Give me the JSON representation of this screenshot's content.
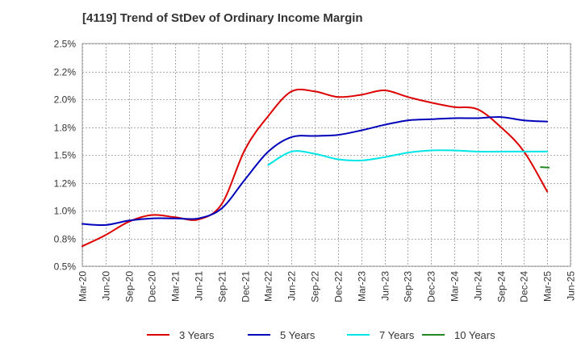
{
  "chart_data": {
    "type": "line",
    "title": "[4119]  Trend of StDev of Ordinary Income Margin",
    "xlabel": "",
    "ylabel": "",
    "ylim": [
      0.5,
      2.5
    ],
    "y_ticks": [
      "0.5%",
      "0.8%",
      "1.0%",
      "1.2%",
      "1.5%",
      "1.8%",
      "2.0%",
      "2.2%",
      "2.5%"
    ],
    "y_tick_values": [
      0.5,
      0.75,
      1.0,
      1.25,
      1.5,
      1.75,
      2.0,
      2.25,
      2.5
    ],
    "categories": [
      "Mar-20",
      "Jun-20",
      "Sep-20",
      "Dec-20",
      "Mar-21",
      "Jun-21",
      "Sep-21",
      "Dec-21",
      "Mar-22",
      "Jun-22",
      "Sep-22",
      "Dec-22",
      "Mar-23",
      "Jun-23",
      "Sep-23",
      "Dec-23",
      "Mar-24",
      "Jun-24",
      "Sep-24",
      "Dec-24",
      "Mar-25",
      "Jun-25"
    ],
    "grid": true,
    "legend_position": "bottom",
    "series": [
      {
        "name": "3 Years",
        "color": "#dd0000",
        "values": [
          0.68,
          0.78,
          0.9,
          0.96,
          0.94,
          0.92,
          1.06,
          1.55,
          1.85,
          2.07,
          2.07,
          2.02,
          2.04,
          2.08,
          2.02,
          1.97,
          1.93,
          1.91,
          1.75,
          1.53,
          1.17,
          null
        ]
      },
      {
        "name": "5 Years",
        "color": "#0000bb",
        "values": [
          0.88,
          0.87,
          0.91,
          0.93,
          0.93,
          0.93,
          1.02,
          1.28,
          1.53,
          1.66,
          1.67,
          1.68,
          1.72,
          1.77,
          1.81,
          1.82,
          1.83,
          1.83,
          1.84,
          1.81,
          1.8,
          null
        ]
      },
      {
        "name": "7 Years",
        "color": "#00e5e5",
        "values": [
          null,
          null,
          null,
          null,
          null,
          null,
          null,
          null,
          1.41,
          1.53,
          1.51,
          1.46,
          1.45,
          1.48,
          1.52,
          1.54,
          1.54,
          1.53,
          1.53,
          1.53,
          1.53,
          null
        ]
      },
      {
        "name": "10 Years",
        "color": "#228822",
        "values": [
          null,
          null,
          null,
          null,
          null,
          null,
          null,
          null,
          null,
          null,
          null,
          null,
          null,
          null,
          null,
          null,
          null,
          null,
          null,
          null,
          1.39,
          null
        ]
      }
    ]
  }
}
